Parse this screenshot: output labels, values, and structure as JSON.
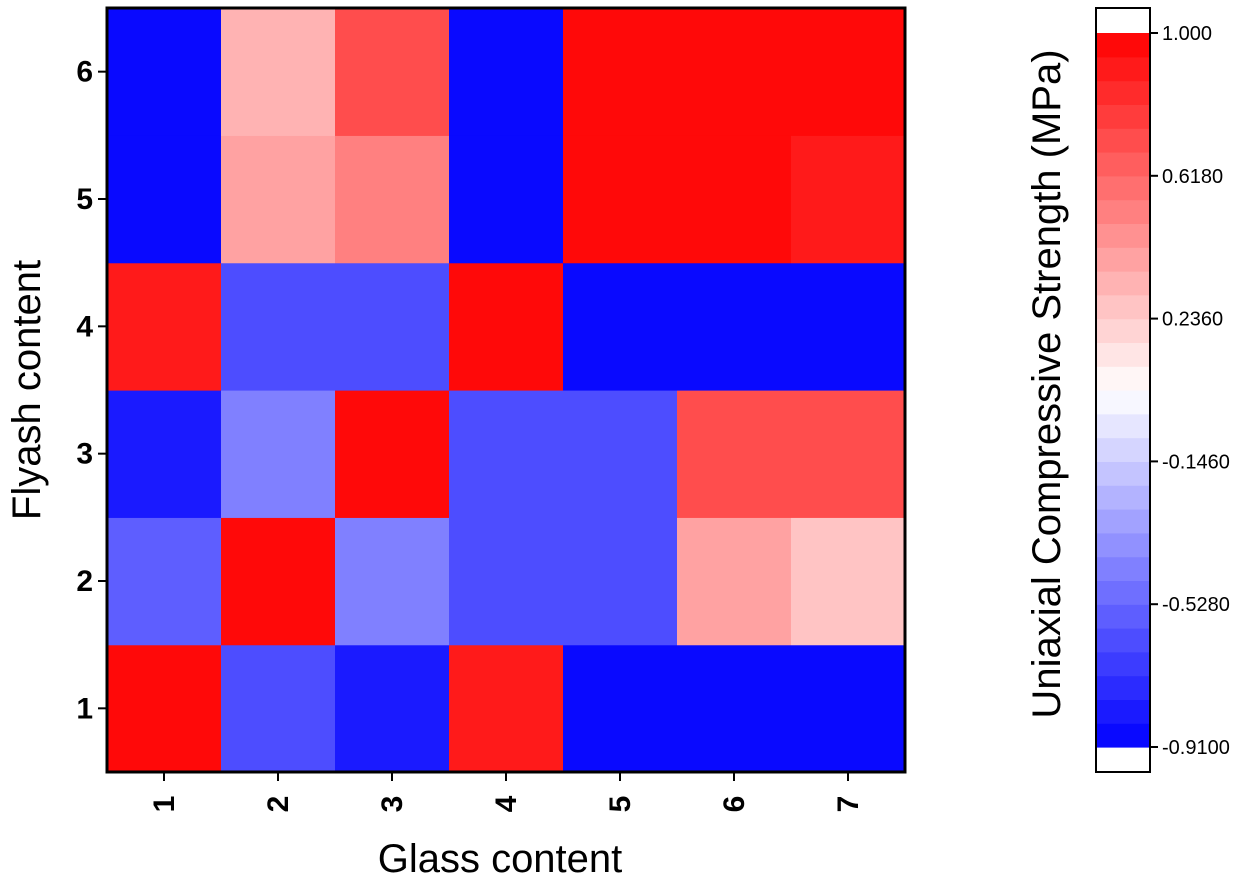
{
  "chart_data": {
    "type": "heatmap",
    "title": "",
    "xlabel": "Glass content",
    "ylabel": "Flyash content",
    "x_categories": [
      "1",
      "2",
      "3",
      "4",
      "5",
      "6",
      "7"
    ],
    "y_categories": [
      "1",
      "2",
      "3",
      "4",
      "5",
      "6"
    ],
    "values": [
      [
        1.0,
        -0.55,
        -0.84,
        0.92,
        -0.87,
        -0.91
      ],
      [
        -0.62,
        1.0,
        -0.44,
        -0.6,
        0.42,
        0.32
      ],
      [
        -0.84,
        -0.42,
        1.0,
        -0.6,
        0.5,
        0.7
      ],
      [
        0.92,
        -0.6,
        -0.6,
        1.0,
        -0.91,
        -0.91
      ],
      [
        -0.87,
        -0.6,
        -0.6,
        -0.91,
        1.0,
        0.96
      ],
      [
        -0.91,
        0.42,
        0.7,
        -0.91,
        0.96,
        1.0
      ],
      [
        -0.91,
        0.28,
        0.72,
        -0.91,
        0.93,
        1.0
      ]
    ],
    "values_layout": "values[x_index][y_index]",
    "colorbar": {
      "label": "Uniaxial Compressive Strength (MPa)",
      "min": -0.91,
      "max": 1.0,
      "ticks": [
        {
          "value": 1.0,
          "label": "1.000"
        },
        {
          "value": 0.618,
          "label": "0.6180"
        },
        {
          "value": 0.236,
          "label": "0.2360"
        },
        {
          "value": -0.146,
          "label": "-0.1460"
        },
        {
          "value": -0.528,
          "label": "-0.5280"
        },
        {
          "value": -0.91,
          "label": "-0.9100"
        }
      ],
      "low_color": "#0000ff",
      "mid_color": "#ffffff",
      "high_color": "#ff0000",
      "levels": 30
    }
  }
}
